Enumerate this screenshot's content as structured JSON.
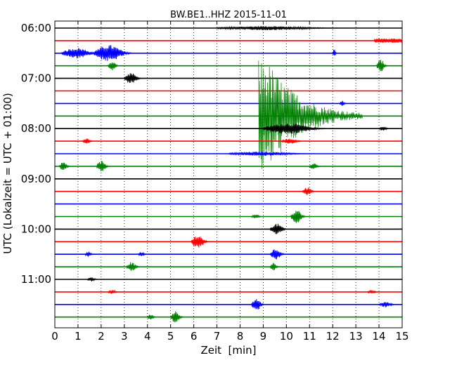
{
  "chart_data": {
    "type": "line",
    "title": "BW.BE1..HHZ 2015-11-01",
    "xlabel": "Zeit  [min]",
    "ylabel": "UTC (Lokalzeit = UTC + 01:00)",
    "xlim": [
      0,
      15
    ],
    "x_ticks": [
      0,
      1,
      2,
      3,
      4,
      5,
      6,
      7,
      8,
      9,
      10,
      11,
      12,
      13,
      14,
      15
    ],
    "x_tick_labels": [
      "0",
      "1",
      "2",
      "3",
      "4",
      "5",
      "6",
      "7",
      "8",
      "9",
      "10",
      "11",
      "12",
      "13",
      "14",
      "15"
    ],
    "y_tick_labels": [
      "06:00",
      "07:00",
      "08:00",
      "09:00",
      "10:00",
      "11:00"
    ],
    "grid": "vertical-dotted",
    "trace_colors": [
      "#000000",
      "#ff0000",
      "#0000ff",
      "#008000"
    ],
    "traces": [
      {
        "time": "06:00",
        "events": [
          {
            "t": 7.0,
            "amp": 3,
            "dur": 6
          }
        ]
      },
      {
        "time": "06:15",
        "events": [
          {
            "t": 13.8,
            "amp": 5,
            "dur": 1.2,
            "sustained": true
          }
        ]
      },
      {
        "time": "06:30",
        "events": [
          {
            "t": 0.3,
            "amp": 8,
            "dur": 1.8
          },
          {
            "t": 1.7,
            "amp": 12,
            "dur": 1.8
          },
          {
            "t": 12.0,
            "amp": 6,
            "dur": 0.2
          }
        ]
      },
      {
        "time": "06:45",
        "events": [
          {
            "t": 2.3,
            "amp": 7,
            "dur": 0.5
          },
          {
            "t": 13.9,
            "amp": 9,
            "dur": 0.5
          }
        ]
      },
      {
        "time": "07:00",
        "events": [
          {
            "t": 3.0,
            "amp": 8,
            "dur": 0.8
          }
        ]
      },
      {
        "time": "07:15",
        "events": []
      },
      {
        "time": "07:30",
        "events": [
          {
            "t": 12.3,
            "amp": 4,
            "dur": 0.3
          }
        ]
      },
      {
        "time": "07:45",
        "events": [
          {
            "t": 8.8,
            "amp": 80,
            "dur": 4.5
          }
        ]
      },
      {
        "time": "08:00",
        "events": [
          {
            "t": 9.0,
            "amp": 8,
            "dur": 3.0
          },
          {
            "t": 14.0,
            "amp": 3,
            "dur": 0.5
          }
        ]
      },
      {
        "time": "08:15",
        "events": [
          {
            "t": 1.2,
            "amp": 4,
            "dur": 0.5
          },
          {
            "t": 9.8,
            "amp": 4,
            "dur": 1.0
          }
        ]
      },
      {
        "time": "08:30",
        "events": [
          {
            "t": 7.5,
            "amp": 3,
            "dur": 4.0
          }
        ]
      },
      {
        "time": "08:45",
        "events": [
          {
            "t": 0.2,
            "amp": 7,
            "dur": 0.5
          },
          {
            "t": 1.8,
            "amp": 8,
            "dur": 0.6
          },
          {
            "t": 11.0,
            "amp": 5,
            "dur": 0.5
          }
        ]
      },
      {
        "time": "09:00",
        "events": []
      },
      {
        "time": "09:15",
        "events": [
          {
            "t": 10.7,
            "amp": 6,
            "dur": 0.6
          }
        ]
      },
      {
        "time": "09:30",
        "events": []
      },
      {
        "time": "09:45",
        "events": [
          {
            "t": 10.2,
            "amp": 10,
            "dur": 0.7
          },
          {
            "t": 8.5,
            "amp": 3,
            "dur": 0.5
          }
        ]
      },
      {
        "time": "10:00",
        "events": [
          {
            "t": 9.3,
            "amp": 8,
            "dur": 0.8
          }
        ]
      },
      {
        "time": "10:15",
        "events": [
          {
            "t": 5.9,
            "amp": 10,
            "dur": 0.8
          }
        ]
      },
      {
        "time": "10:30",
        "events": [
          {
            "t": 9.3,
            "amp": 8,
            "dur": 0.7
          },
          {
            "t": 3.6,
            "amp": 4,
            "dur": 0.4
          },
          {
            "t": 1.3,
            "amp": 4,
            "dur": 0.4
          }
        ]
      },
      {
        "time": "10:45",
        "events": [
          {
            "t": 3.1,
            "amp": 7,
            "dur": 0.6
          },
          {
            "t": 9.3,
            "amp": 6,
            "dur": 0.4
          }
        ]
      },
      {
        "time": "11:00",
        "events": [
          {
            "t": 1.4,
            "amp": 3,
            "dur": 0.5
          }
        ]
      },
      {
        "time": "11:15",
        "events": [
          {
            "t": 2.3,
            "amp": 3,
            "dur": 0.5
          },
          {
            "t": 13.5,
            "amp": 3,
            "dur": 0.5
          }
        ]
      },
      {
        "time": "11:30",
        "events": [
          {
            "t": 8.5,
            "amp": 9,
            "dur": 0.6
          },
          {
            "t": 14.0,
            "amp": 4,
            "dur": 0.8
          }
        ]
      },
      {
        "time": "11:45",
        "events": [
          {
            "t": 5.0,
            "amp": 9,
            "dur": 0.6
          },
          {
            "t": 4.0,
            "amp": 4,
            "dur": 0.4
          }
        ]
      }
    ]
  }
}
